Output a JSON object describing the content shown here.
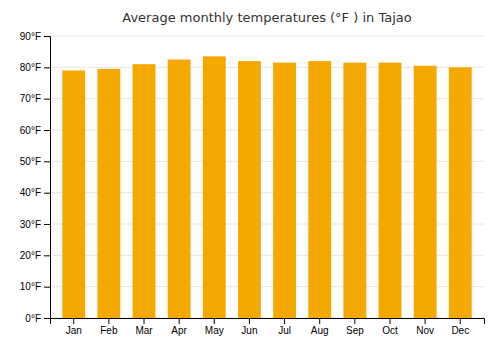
{
  "chart_data": {
    "type": "bar",
    "title": "Average monthly temperatures (°F ) in Tajao",
    "categories": [
      "Jan",
      "Feb",
      "Mar",
      "Apr",
      "May",
      "Jun",
      "Jul",
      "Aug",
      "Sep",
      "Oct",
      "Nov",
      "Dec"
    ],
    "values": [
      79,
      79.5,
      81,
      82.5,
      83.5,
      82,
      81.5,
      82,
      81.5,
      81.5,
      80.5,
      80
    ],
    "color": "#F5A800",
    "ylim": [
      0,
      90
    ],
    "yticks": [
      {
        "value": 0,
        "label": "0°F"
      },
      {
        "value": 10,
        "label": "10°F"
      },
      {
        "value": 20,
        "label": "20°F"
      },
      {
        "value": 30,
        "label": "30°F"
      },
      {
        "value": 40,
        "label": "40°F"
      },
      {
        "value": 50,
        "label": "50°F"
      },
      {
        "value": 60,
        "label": "60°F"
      },
      {
        "value": 70,
        "label": "70°F"
      },
      {
        "value": 80,
        "label": "80°F"
      },
      {
        "value": 90,
        "label": "90°F"
      }
    ],
    "grid": true
  }
}
